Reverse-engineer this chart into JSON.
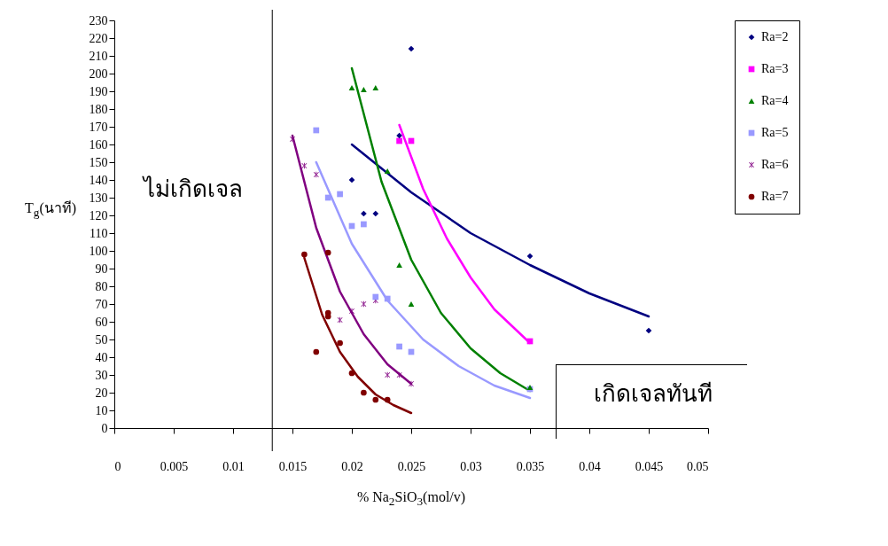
{
  "chart_data": {
    "type": "scatter",
    "xlabel": "% Na$_{2}$SiO$_{3}$(mol/v)",
    "ylabel": "T$_{g}$(นาที)",
    "xlim": [
      0,
      0.05
    ],
    "xticks": [
      0,
      0.005,
      0.01,
      0.015,
      0.02,
      0.025,
      0.03,
      0.035,
      0.04,
      0.045,
      0.05
    ],
    "ylim": [
      0,
      230
    ],
    "yticks": [
      0,
      10,
      20,
      30,
      40,
      50,
      60,
      70,
      80,
      90,
      100,
      110,
      120,
      130,
      140,
      150,
      160,
      170,
      180,
      190,
      200,
      210,
      220,
      230
    ],
    "legend": "right",
    "annotations": [
      "ไม่เกิดเจล",
      "เกิดเจลทันที"
    ],
    "ref_lines": [
      {
        "axis": "x",
        "value": 0.0133,
        "color": "#000000"
      }
    ],
    "series": [
      {
        "type": "scatter",
        "name": "Ra=2",
        "color": "#000080",
        "marker": "diamond",
        "x": [
          0.02,
          0.021,
          0.022,
          0.024,
          0.025,
          0.035,
          0.045
        ],
        "values": [
          140,
          121,
          121,
          165,
          214,
          97,
          55
        ]
      },
      {
        "type": "scatter",
        "name": "Ra=3",
        "color": "#ff00ff",
        "marker": "square",
        "x": [
          0.024,
          0.025,
          0.035
        ],
        "values": [
          162,
          162,
          49
        ]
      },
      {
        "type": "scatter",
        "name": "Ra=4",
        "color": "#008000",
        "marker": "triangle",
        "x": [
          0.02,
          0.021,
          0.022,
          0.023,
          0.024,
          0.025,
          0.035
        ],
        "values": [
          192,
          191,
          192,
          145,
          92,
          70,
          23
        ]
      },
      {
        "type": "scatter",
        "name": "Ra=5",
        "color": "#9999ff",
        "marker": "square",
        "x": [
          0.017,
          0.018,
          0.019,
          0.02,
          0.021,
          0.022,
          0.023,
          0.024,
          0.025,
          0.035
        ],
        "values": [
          168,
          130,
          132,
          114,
          115,
          74,
          73,
          46,
          43,
          22
        ]
      },
      {
        "type": "scatter",
        "name": "Ra=6",
        "color": "#800080",
        "marker": "cross",
        "x": [
          0.015,
          0.016,
          0.017,
          0.019,
          0.02,
          0.021,
          0.022,
          0.023,
          0.024,
          0.025
        ],
        "values": [
          163,
          148,
          143,
          61,
          66,
          70,
          72,
          30,
          30,
          25
        ]
      },
      {
        "type": "scatter",
        "name": "Ra=7",
        "color": "#800000",
        "marker": "circle",
        "x": [
          0.016,
          0.017,
          0.018,
          0.018,
          0.018,
          0.019,
          0.02,
          0.021,
          0.022,
          0.023
        ],
        "values": [
          98,
          43,
          99,
          65,
          63,
          48,
          31,
          20,
          16,
          16
        ]
      },
      {
        "type": "line",
        "color": "#000080",
        "x": [
          0.02,
          0.025,
          0.03,
          0.035,
          0.04,
          0.045
        ],
        "values": [
          160,
          133,
          110,
          92,
          76,
          63
        ]
      },
      {
        "type": "line",
        "color": "#ff00ff",
        "x": [
          0.024,
          0.026,
          0.028,
          0.03,
          0.032,
          0.035
        ],
        "values": [
          171,
          135,
          107,
          85,
          67,
          48
        ]
      },
      {
        "type": "line",
        "color": "#008000",
        "x": [
          0.02,
          0.0225,
          0.025,
          0.0275,
          0.03,
          0.0325,
          0.035
        ],
        "values": [
          203,
          139,
          95,
          65,
          45,
          31,
          21
        ]
      },
      {
        "type": "line",
        "color": "#9999ff",
        "x": [
          0.017,
          0.02,
          0.023,
          0.026,
          0.029,
          0.032,
          0.035
        ],
        "values": [
          150,
          104,
          72,
          50,
          35,
          24,
          17
        ]
      },
      {
        "type": "line",
        "color": "#800080",
        "x": [
          0.015,
          0.017,
          0.019,
          0.021,
          0.023,
          0.025
        ],
        "values": [
          165,
          113,
          77,
          53,
          36,
          25
        ]
      },
      {
        "type": "line",
        "color": "#800000",
        "x": [
          0.016,
          0.0175,
          0.019,
          0.0205,
          0.022,
          0.0235,
          0.025
        ],
        "values": [
          96,
          64,
          43,
          29,
          19,
          13,
          8.5
        ]
      }
    ]
  }
}
